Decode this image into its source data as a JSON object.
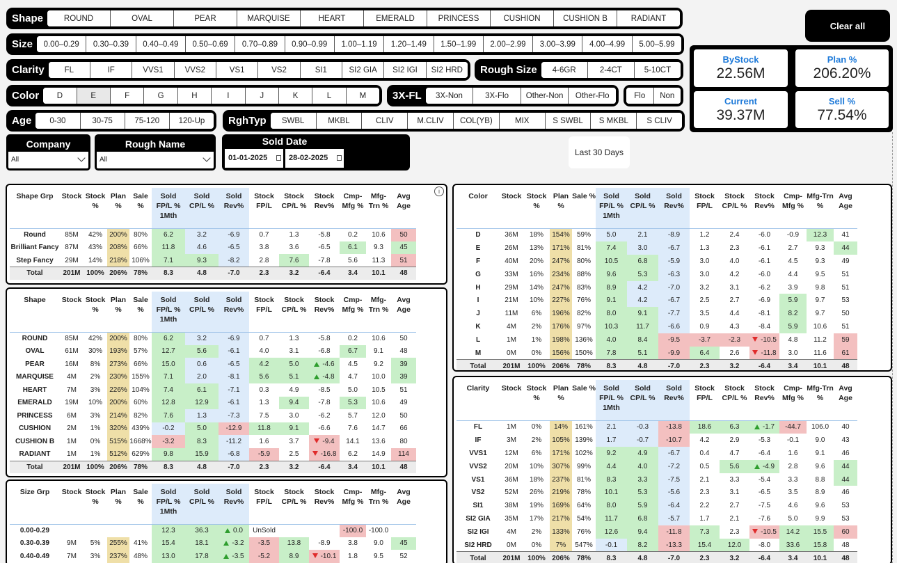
{
  "slicers": {
    "shape": {
      "title": "Shape",
      "items": [
        "ROUND",
        "OVAL",
        "PEAR",
        "MARQUISE",
        "HEART",
        "EMERALD",
        "PRINCESS",
        "CUSHION",
        "CUSHION B",
        "RADIANT"
      ]
    },
    "size": {
      "title": "Size",
      "items": [
        "0.00–0.29",
        "0.30–0.39",
        "0.40–0.49",
        "0.50–0.69",
        "0.70–0.89",
        "0.90–0.99",
        "1.00–1.19",
        "1.20–1.49",
        "1.50–1.99",
        "2.00–2.99",
        "3.00–3.99",
        "4.00–4.99",
        "5.00–5.99"
      ]
    },
    "clarity": {
      "title": "Clarity",
      "items": [
        "FL",
        "IF",
        "VVS1",
        "VVS2",
        "VS1",
        "VS2",
        "SI1",
        "SI2 GIA",
        "SI2 IGI",
        "SI2 HRD"
      ]
    },
    "rough_size": {
      "title": "Rough Size",
      "items": [
        "4-6GR",
        "2-4CT",
        "5-10CT"
      ]
    },
    "color": {
      "title": "Color",
      "items": [
        "D",
        "E",
        "F",
        "G",
        "H",
        "I",
        "J",
        "K",
        "L",
        "M"
      ]
    },
    "threexfl": {
      "title": "3X-FL",
      "items": [
        "3X-Non",
        "3X-Flo",
        "Other-Non",
        "Other-Flo"
      ]
    },
    "flo": {
      "title": "",
      "items": [
        "Flo",
        "Non"
      ]
    },
    "age": {
      "title": "Age",
      "items": [
        "0-30",
        "30-75",
        "75-120",
        "120-Up"
      ]
    },
    "rghtyp": {
      "title": "RghTyp",
      "items": [
        "SWBL",
        "MKBL",
        "CLIV",
        "M.CLIV",
        "COL(YB)",
        "MIX",
        "S SWBL",
        "S MKBL",
        "S CLIV"
      ]
    }
  },
  "clear_all": "Clear all",
  "kpis": {
    "bystock": {
      "label": "ByStock",
      "value": "22.56M"
    },
    "plan": {
      "label": "Plan %",
      "value": "206.20%"
    },
    "current": {
      "label": "Current",
      "value": "39.37M"
    },
    "sell": {
      "label": "Sell %",
      "value": "77.54%"
    }
  },
  "filters": {
    "company": {
      "title": "Company",
      "value": "All"
    },
    "rough_name": {
      "title": "Rough Name",
      "value": "All"
    },
    "sold_date": {
      "title": "Sold Date",
      "from": "01-01-2025",
      "to": "28-02-2025",
      "last30": "Last 30 Days"
    }
  },
  "headers": [
    "Stock",
    "Stock %",
    "Plan %",
    "Sale %",
    "Sold FP/L % 1Mth",
    "Sold CP/L %",
    "Sold Rev%",
    "Stock FP/L",
    "Stock CP/L %",
    "Stock Rev%",
    "Cmp-Mfg %",
    "Mfg-Trn %",
    "Avg Age"
  ],
  "info_icon": "i",
  "tables": {
    "shape_grp": {
      "first": "Shape Grp",
      "rows": [
        {
          "c": [
            "Round",
            "85M",
            "42%",
            "200%",
            "80%",
            "6.2",
            "3.2",
            "-6.9",
            "0.7",
            "1.3",
            "-5.8",
            "0.2",
            "10.6",
            "50"
          ]
        },
        {
          "c": [
            "Brilliant Fancy",
            "87M",
            "43%",
            "208%",
            "66%",
            "11.8",
            "4.6",
            "-6.5",
            "3.8",
            "3.6",
            "-6.5",
            "6.1",
            "9.3",
            "45"
          ]
        },
        {
          "c": [
            "Step Fancy",
            "29M",
            "14%",
            "218%",
            "106%",
            "7.1",
            "9.3",
            "-8.2",
            "2.8",
            "7.6",
            "-7.8",
            "5.6",
            "11.3",
            "51"
          ]
        }
      ],
      "total": [
        "Total",
        "201M",
        "100%",
        "206%",
        "78%",
        "8.3",
        "4.8",
        "-7.0",
        "2.3",
        "3.2",
        "-6.4",
        "3.4",
        "10.1",
        "48"
      ]
    },
    "shape": {
      "first": "Shape",
      "rows": [
        {
          "c": [
            "ROUND",
            "85M",
            "42%",
            "200%",
            "80%",
            "6.2",
            "3.2",
            "-6.9",
            "0.7",
            "1.3",
            "-5.8",
            "0.2",
            "10.6",
            "50"
          ]
        },
        {
          "c": [
            "OVAL",
            "61M",
            "30%",
            "193%",
            "57%",
            "12.7",
            "5.6",
            "-6.1",
            "4.0",
            "3.1",
            "-6.8",
            "6.7",
            "9.1",
            "48"
          ]
        },
        {
          "c": [
            "PEAR",
            "16M",
            "8%",
            "273%",
            "66%",
            "15.0",
            "0.6",
            "-6.5",
            "4.2",
            "5.0",
            "-4.6",
            "4.5",
            "9.2",
            "39"
          ]
        },
        {
          "c": [
            "MARQUISE",
            "4M",
            "2%",
            "230%",
            "155%",
            "7.1",
            "2.0",
            "-8.1",
            "5.6",
            "5.1",
            "-4.8",
            "4.7",
            "10.0",
            "39"
          ]
        },
        {
          "c": [
            "HEART",
            "7M",
            "3%",
            "226%",
            "104%",
            "7.4",
            "6.1",
            "-7.1",
            "0.3",
            "4.9",
            "-8.5",
            "5.0",
            "10.5",
            "51"
          ]
        },
        {
          "c": [
            "EMERALD",
            "19M",
            "10%",
            "200%",
            "60%",
            "12.8",
            "12.9",
            "-6.1",
            "1.3",
            "9.4",
            "-7.8",
            "5.3",
            "10.6",
            "49"
          ]
        },
        {
          "c": [
            "PRINCESS",
            "6M",
            "3%",
            "214%",
            "82%",
            "7.6",
            "1.3",
            "-7.3",
            "7.5",
            "3.0",
            "-6.2",
            "5.7",
            "12.0",
            "50"
          ]
        },
        {
          "c": [
            "CUSHION",
            "2M",
            "1%",
            "320%",
            "439%",
            "-0.2",
            "5.0",
            "-12.9",
            "11.8",
            "9.1",
            "-6.6",
            "7.6",
            "14.7",
            "66"
          ]
        },
        {
          "c": [
            "CUSHION B",
            "1M",
            "0%",
            "515%",
            "1668%",
            "-3.2",
            "8.3",
            "-11.2",
            "1.6",
            "3.7",
            "-9.4",
            "14.1",
            "13.6",
            "80"
          ]
        },
        {
          "c": [
            "RADIANT",
            "1M",
            "1%",
            "512%",
            "629%",
            "9.8",
            "15.9",
            "-6.8",
            "-5.9",
            "2.5",
            "-16.8",
            "6.2",
            "14.9",
            "114"
          ]
        }
      ],
      "total": [
        "Total",
        "201M",
        "100%",
        "206%",
        "78%",
        "8.3",
        "4.8",
        "-7.0",
        "2.3",
        "3.2",
        "-6.4",
        "3.4",
        "10.1",
        "48"
      ]
    },
    "size_grp": {
      "first": "Size Grp",
      "rows": [
        {
          "c": [
            "0.00-0.29",
            "",
            "",
            "",
            "",
            "12.3",
            "36.3",
            "0.0",
            "UnSold",
            "",
            "",
            "-100.0",
            "-100.0",
            ""
          ]
        },
        {
          "c": [
            "0.30-0.39",
            "9M",
            "5%",
            "255%",
            "41%",
            "15.4",
            "18.1",
            "-3.2",
            "-3.5",
            "13.8",
            "-8.9",
            "3.8",
            "9.0",
            "45"
          ]
        },
        {
          "c": [
            "0.40-0.49",
            "7M",
            "3%",
            "237%",
            "48%",
            "13.0",
            "17.8",
            "-3.5",
            "-5.2",
            "8.9",
            "-10.1",
            "1.8",
            "9.5",
            "52"
          ]
        }
      ]
    },
    "color": {
      "first": "Color",
      "rows": [
        {
          "c": [
            "D",
            "36M",
            "18%",
            "154%",
            "59%",
            "5.0",
            "2.1",
            "-8.9",
            "1.2",
            "2.4",
            "-6.0",
            "-0.9",
            "12.3",
            "41"
          ]
        },
        {
          "c": [
            "E",
            "26M",
            "13%",
            "171%",
            "81%",
            "7.4",
            "3.0",
            "-6.7",
            "1.3",
            "2.3",
            "-6.1",
            "2.7",
            "9.3",
            "44"
          ]
        },
        {
          "c": [
            "F",
            "40M",
            "20%",
            "247%",
            "80%",
            "10.5",
            "6.8",
            "-5.9",
            "3.0",
            "4.0",
            "-6.1",
            "4.5",
            "9.3",
            "49"
          ]
        },
        {
          "c": [
            "G",
            "33M",
            "16%",
            "234%",
            "88%",
            "9.6",
            "5.3",
            "-6.3",
            "3.0",
            "4.2",
            "-6.0",
            "4.4",
            "9.5",
            "51"
          ]
        },
        {
          "c": [
            "H",
            "29M",
            "14%",
            "247%",
            "83%",
            "8.9",
            "4.2",
            "-7.0",
            "3.2",
            "3.1",
            "-6.2",
            "3.9",
            "9.8",
            "51"
          ]
        },
        {
          "c": [
            "I",
            "21M",
            "10%",
            "227%",
            "76%",
            "9.1",
            "4.2",
            "-6.7",
            "2.5",
            "2.7",
            "-6.9",
            "5.9",
            "9.7",
            "53"
          ]
        },
        {
          "c": [
            "J",
            "11M",
            "6%",
            "196%",
            "82%",
            "8.0",
            "9.1",
            "-7.7",
            "3.5",
            "4.4",
            "-8.1",
            "8.2",
            "9.7",
            "50"
          ]
        },
        {
          "c": [
            "K",
            "4M",
            "2%",
            "176%",
            "97%",
            "10.3",
            "11.7",
            "-6.6",
            "0.9",
            "4.3",
            "-8.4",
            "5.9",
            "10.6",
            "51"
          ]
        },
        {
          "c": [
            "L",
            "1M",
            "1%",
            "198%",
            "136%",
            "4.0",
            "8.4",
            "-9.5",
            "-3.7",
            "-2.3",
            "-10.5",
            "4.8",
            "11.2",
            "59"
          ]
        },
        {
          "c": [
            "M",
            "0M",
            "0%",
            "156%",
            "150%",
            "7.8",
            "5.1",
            "-9.9",
            "6.4",
            "2.6",
            "-11.8",
            "3.0",
            "11.6",
            "61"
          ]
        }
      ],
      "total": [
        "Total",
        "201M",
        "100%",
        "206%",
        "78%",
        "8.3",
        "4.8",
        "-7.0",
        "2.3",
        "3.2",
        "-6.4",
        "3.4",
        "10.1",
        "48"
      ]
    },
    "clarity": {
      "first": "Clarity",
      "rows": [
        {
          "c": [
            "FL",
            "1M",
            "0%",
            "14%",
            "161%",
            "2.1",
            "-0.3",
            "-13.8",
            "18.6",
            "6.3",
            "-1.7",
            "-44.7",
            "106.0",
            "40"
          ]
        },
        {
          "c": [
            "IF",
            "3M",
            "2%",
            "105%",
            "139%",
            "1.7",
            "-0.7",
            "-10.7",
            "4.2",
            "2.9",
            "-5.3",
            "-0.1",
            "9.0",
            "43"
          ]
        },
        {
          "c": [
            "VVS1",
            "12M",
            "6%",
            "171%",
            "102%",
            "9.2",
            "4.9",
            "-6.7",
            "0.4",
            "4.7",
            "-6.4",
            "1.6",
            "9.1",
            "46"
          ]
        },
        {
          "c": [
            "VVS2",
            "20M",
            "10%",
            "307%",
            "99%",
            "4.4",
            "4.0",
            "-7.2",
            "0.5",
            "5.6",
            "-4.9",
            "2.8",
            "9.6",
            "44"
          ]
        },
        {
          "c": [
            "VS1",
            "36M",
            "18%",
            "237%",
            "81%",
            "8.3",
            "3.3",
            "-7.5",
            "2.1",
            "3.3",
            "-5.4",
            "3.3",
            "8.8",
            "44"
          ]
        },
        {
          "c": [
            "VS2",
            "52M",
            "26%",
            "219%",
            "78%",
            "10.1",
            "5.3",
            "-5.6",
            "2.3",
            "3.1",
            "-6.5",
            "3.5",
            "8.9",
            "46"
          ]
        },
        {
          "c": [
            "SI1",
            "38M",
            "19%",
            "169%",
            "64%",
            "8.0",
            "5.9",
            "-6.4",
            "2.2",
            "2.7",
            "-7.5",
            "4.6",
            "9.6",
            "53"
          ]
        },
        {
          "c": [
            "SI2 GIA",
            "35M",
            "17%",
            "217%",
            "54%",
            "11.7",
            "6.8",
            "-5.7",
            "1.7",
            "2.1",
            "-7.6",
            "5.0",
            "9.9",
            "53"
          ]
        },
        {
          "c": [
            "SI2 IGI",
            "4M",
            "2%",
            "133%",
            "76%",
            "12.6",
            "9.4",
            "-11.8",
            "7.3",
            "2.3",
            "-10.5",
            "14.2",
            "15.5",
            "60"
          ]
        },
        {
          "c": [
            "SI2 HRD",
            "0M",
            "0%",
            "7%",
            "547%",
            "-0.1",
            "8.2",
            "-13.3",
            "15.4",
            "12.0",
            "-8.0",
            "33.6",
            "15.8",
            "48"
          ]
        }
      ],
      "total": [
        "Total",
        "201M",
        "100%",
        "206%",
        "78%",
        "8.3",
        "4.8",
        "-7.0",
        "2.3",
        "3.2",
        "-6.4",
        "3.4",
        "10.1",
        "48"
      ]
    }
  }
}
